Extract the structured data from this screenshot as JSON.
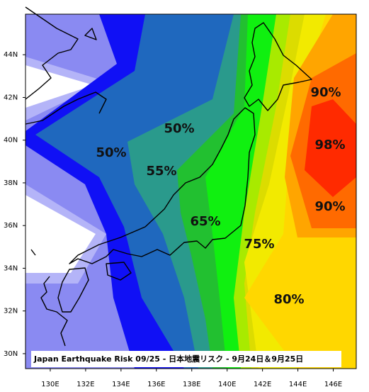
{
  "map": {
    "title": "Japan Earthquake Risk 09/25 - 日本地震リスク - 9月24日＆9月25日",
    "xlim": [
      128.6,
      147.3
    ],
    "ylim": [
      29.3,
      45.9
    ],
    "xticks": [
      {
        "value": 130,
        "label": "130E"
      },
      {
        "value": 132,
        "label": "132E"
      },
      {
        "value": 134,
        "label": "134E"
      },
      {
        "value": 136,
        "label": "136E"
      },
      {
        "value": 138,
        "label": "138E"
      },
      {
        "value": 140,
        "label": "140E"
      },
      {
        "value": 142,
        "label": "142E"
      },
      {
        "value": 144,
        "label": "144E"
      },
      {
        "value": 146,
        "label": "146E"
      }
    ],
    "yticks": [
      {
        "value": 30,
        "label": "30N"
      },
      {
        "value": 32,
        "label": "32N"
      },
      {
        "value": 34,
        "label": "34N"
      },
      {
        "value": 36,
        "label": "36N"
      },
      {
        "value": 38,
        "label": "38N"
      },
      {
        "value": 40,
        "label": "40N"
      },
      {
        "value": 42,
        "label": "42N"
      },
      {
        "value": 44,
        "label": "44N"
      }
    ],
    "labels": [
      "90%",
      "50%",
      "50%",
      "98%",
      "55%",
      "90%",
      "65%",
      "75%",
      "80%"
    ]
  }
}
